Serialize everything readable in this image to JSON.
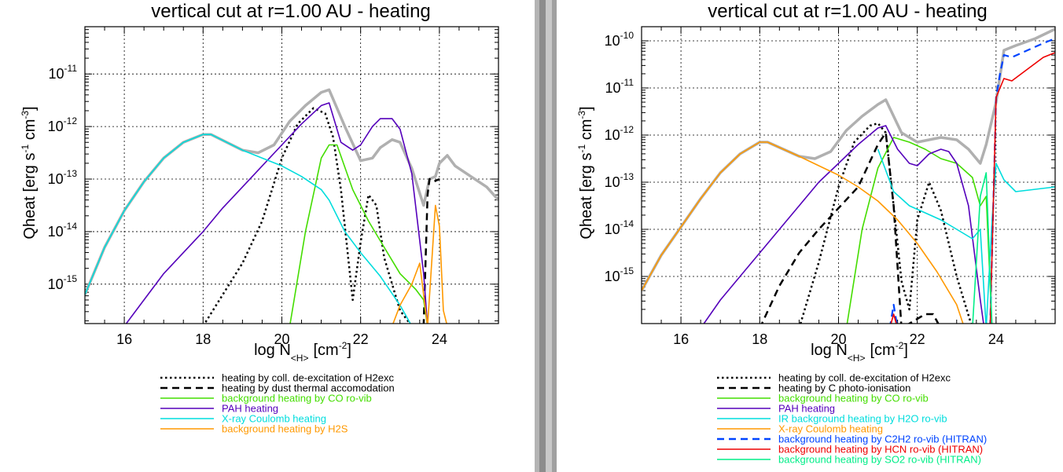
{
  "panels": [
    {
      "id": "left",
      "title": "vertical cut at r=1.00 AU - heating",
      "xlabel": "log N",
      "xlabel_sub": "<H>",
      "xlabel_unit_pre": "[cm",
      "xlabel_unit_sup": "-2",
      "xlabel_unit_post": "]",
      "ylabel_main": "Qheat [erg s",
      "ylabel_sup1": "-1",
      "ylabel_mid": " cm",
      "ylabel_sup2": "-3",
      "ylabel_end": "]",
      "xticks": [
        "16",
        "18",
        "20",
        "22",
        "24"
      ],
      "yticks": [
        {
          "base": "10",
          "exp": "-15"
        },
        {
          "base": "10",
          "exp": "-14"
        },
        {
          "base": "10",
          "exp": "-13"
        },
        {
          "base": "10",
          "exp": "-12"
        },
        {
          "base": "10",
          "exp": "-11"
        }
      ],
      "legend": [
        {
          "label": "heating by coll. de-excitation of H2exc",
          "color": "#000000",
          "dash": "dot"
        },
        {
          "label": "heating by dust thermal accomodation",
          "color": "#000000",
          "dash": "dash"
        },
        {
          "label": "background heating by CO ro-vib",
          "color": "#44dd00",
          "dash": "solid"
        },
        {
          "label": "PAH heating",
          "color": "#5500bb",
          "dash": "solid"
        },
        {
          "label": "X-ray Coulomb heating",
          "color": "#00dddd",
          "dash": "solid"
        },
        {
          "label": "background heating by H2S",
          "color": "#ff9900",
          "dash": "solid"
        }
      ]
    },
    {
      "id": "right",
      "title": "vertical cut at r=1.00 AU - heating",
      "xlabel": "log N",
      "xlabel_sub": "<H>",
      "xlabel_unit_pre": "[cm",
      "xlabel_unit_sup": "-2",
      "xlabel_unit_post": "]",
      "ylabel_main": "Qheat [erg s",
      "ylabel_sup1": "-1",
      "ylabel_mid": " cm",
      "ylabel_sup2": "-3",
      "ylabel_end": "]",
      "xticks": [
        "16",
        "18",
        "20",
        "22",
        "24"
      ],
      "yticks": [
        {
          "base": "10",
          "exp": "-15"
        },
        {
          "base": "10",
          "exp": "-14"
        },
        {
          "base": "10",
          "exp": "-13"
        },
        {
          "base": "10",
          "exp": "-12"
        },
        {
          "base": "10",
          "exp": "-11"
        },
        {
          "base": "10",
          "exp": "-10"
        }
      ],
      "legend": [
        {
          "label": "heating by coll. de-excitation of H2exc",
          "color": "#000000",
          "dash": "dot"
        },
        {
          "label": "heating by C photo-ionisation",
          "color": "#000000",
          "dash": "dash"
        },
        {
          "label": "background heating by CO ro-vib",
          "color": "#44dd00",
          "dash": "solid"
        },
        {
          "label": "PAH heating",
          "color": "#5500bb",
          "dash": "solid"
        },
        {
          "label": "IR background heating by H2O ro-vib",
          "color": "#00dddd",
          "dash": "solid"
        },
        {
          "label": "X-ray Coulomb heating",
          "color": "#ff9900",
          "dash": "solid"
        },
        {
          "label": "background heating by C2H2 ro-vib (HITRAN)",
          "color": "#0044ff",
          "dash": "dash"
        },
        {
          "label": "background heating by HCN ro-vib (HITRAN)",
          "color": "#ee0000",
          "dash": "solid"
        },
        {
          "label": "background heating by SO2 ro-vib (HITRAN)",
          "color": "#00ee88",
          "dash": "solid"
        }
      ]
    }
  ],
  "chart_data": [
    {
      "type": "line",
      "title": "vertical cut at r=1.00 AU - heating",
      "xlabel": "log N<H> [cm-2]",
      "ylabel": "Qheat [erg s-1 cm-3]",
      "xlim": [
        15.0,
        25.5
      ],
      "ylim_log10": [
        -15.75,
        -10.1
      ],
      "yscale": "log",
      "grid": true,
      "legend_position": "below",
      "series": [
        {
          "name": "total",
          "color": "#b0b0b0",
          "width": 3.5,
          "dash": "solid",
          "x": [
            15.0,
            15.5,
            16.0,
            16.5,
            17.0,
            17.5,
            18.0,
            18.2,
            18.6,
            19.0,
            19.4,
            19.8,
            20.2,
            20.6,
            21.0,
            21.2,
            21.6,
            22.0,
            22.3,
            22.5,
            22.8,
            23.0,
            23.3,
            23.6,
            23.75,
            23.9,
            24.0,
            24.2,
            24.4,
            24.8,
            25.2,
            25.5
          ],
          "y": [
            -15.2,
            -14.3,
            -13.6,
            -13.05,
            -12.6,
            -12.3,
            -12.15,
            -12.15,
            -12.3,
            -12.45,
            -12.5,
            -12.35,
            -11.9,
            -11.6,
            -11.35,
            -11.3,
            -12.0,
            -12.65,
            -12.6,
            -12.4,
            -12.25,
            -12.3,
            -12.8,
            -13.5,
            -13.0,
            -12.95,
            -12.7,
            -12.55,
            -12.75,
            -12.95,
            -13.15,
            -13.4
          ]
        },
        {
          "name": "heating by coll. de-excitation of H2exc",
          "color": "#000000",
          "width": 2.5,
          "dash": "dot",
          "x": [
            18.0,
            18.5,
            19.0,
            19.5,
            20.0,
            20.4,
            20.8,
            21.1,
            21.3,
            21.5,
            21.8,
            22.0,
            22.2,
            22.4,
            22.6,
            23.0,
            23.3
          ],
          "y": [
            -15.8,
            -15.2,
            -14.6,
            -13.8,
            -12.6,
            -11.95,
            -11.65,
            -11.75,
            -12.2,
            -13.2,
            -15.3,
            -14.2,
            -13.3,
            -13.5,
            -14.5,
            -15.5,
            -15.8
          ]
        },
        {
          "name": "heating by dust thermal accomodation",
          "color": "#000000",
          "width": 2.5,
          "dash": "dash",
          "x": [
            23.6,
            23.7,
            23.75,
            23.85,
            24.0
          ],
          "y": [
            -15.8,
            -13.3,
            -13.0,
            -13.05,
            -13.0
          ]
        },
        {
          "name": "background heating by CO ro-vib",
          "color": "#44dd00",
          "width": 1.6,
          "dash": "solid",
          "x": [
            20.2,
            20.6,
            21.0,
            21.2,
            21.4,
            21.8,
            22.2,
            22.6,
            23.0,
            23.4,
            23.6,
            23.7
          ],
          "y": [
            -15.8,
            -14.0,
            -12.6,
            -12.35,
            -12.35,
            -13.2,
            -13.8,
            -14.3,
            -14.8,
            -15.1,
            -15.3,
            -15.8
          ]
        },
        {
          "name": "PAH heating",
          "color": "#5500bb",
          "width": 1.6,
          "dash": "solid",
          "x": [
            16.0,
            16.5,
            17.0,
            17.5,
            18.0,
            18.5,
            19.0,
            19.5,
            20.0,
            20.5,
            21.0,
            21.2,
            21.5,
            21.8,
            22.0,
            22.3,
            22.5,
            22.8,
            23.0,
            23.3,
            23.6,
            23.7
          ],
          "y": [
            -15.8,
            -15.3,
            -14.8,
            -14.4,
            -14.0,
            -13.55,
            -13.15,
            -12.75,
            -12.35,
            -11.95,
            -11.6,
            -11.55,
            -12.3,
            -12.45,
            -12.35,
            -12.0,
            -11.85,
            -11.85,
            -12.05,
            -12.9,
            -14.8,
            -15.8
          ]
        },
        {
          "name": "X-ray Coulomb heating",
          "color": "#00dddd",
          "width": 1.6,
          "dash": "solid",
          "x": [
            15.0,
            15.5,
            16.0,
            16.5,
            17.0,
            17.5,
            18.0,
            18.2,
            18.6,
            19.0,
            19.5,
            20.0,
            20.5,
            21.0,
            21.2,
            21.6,
            22.0,
            22.5,
            23.0,
            23.3
          ],
          "y": [
            -15.2,
            -14.3,
            -13.6,
            -13.05,
            -12.6,
            -12.3,
            -12.15,
            -12.15,
            -12.3,
            -12.45,
            -12.6,
            -12.75,
            -12.95,
            -13.2,
            -13.4,
            -14.0,
            -14.4,
            -14.85,
            -15.4,
            -15.8
          ]
        },
        {
          "name": "background heating by H2S",
          "color": "#ff9900",
          "width": 1.6,
          "dash": "solid",
          "x": [
            22.8,
            23.0,
            23.3,
            23.5,
            23.7,
            23.9,
            24.0,
            24.1,
            24.2
          ],
          "y": [
            -15.8,
            -15.4,
            -15.0,
            -14.6,
            -15.8,
            -13.5,
            -13.9,
            -15.5,
            -15.8
          ]
        }
      ]
    },
    {
      "type": "line",
      "title": "vertical cut at r=1.00 AU - heating",
      "xlabel": "log N<H> [cm-2]",
      "ylabel": "Qheat [erg s-1 cm-3]",
      "xlim": [
        15.0,
        25.5
      ],
      "ylim_log10": [
        -16.0,
        -9.7
      ],
      "yscale": "log",
      "grid": true,
      "legend_position": "below",
      "series": [
        {
          "name": "total",
          "color": "#b0b0b0",
          "width": 3.5,
          "dash": "solid",
          "x": [
            15.0,
            15.5,
            16.0,
            16.5,
            17.0,
            17.5,
            18.0,
            18.2,
            18.6,
            19.0,
            19.4,
            19.8,
            20.2,
            20.6,
            21.0,
            21.2,
            21.6,
            22.0,
            22.3,
            22.6,
            23.0,
            23.3,
            23.6,
            23.75,
            24.0,
            24.2,
            24.5,
            25.0,
            25.5
          ],
          "y": [
            -15.3,
            -14.55,
            -13.95,
            -13.35,
            -12.8,
            -12.4,
            -12.15,
            -12.15,
            -12.3,
            -12.45,
            -12.5,
            -12.35,
            -11.9,
            -11.6,
            -11.35,
            -11.25,
            -11.95,
            -12.15,
            -12.1,
            -12.05,
            -12.1,
            -12.3,
            -12.6,
            -12.2,
            -11.3,
            -10.2,
            -10.1,
            -9.95,
            -9.75
          ]
        },
        {
          "name": "heating by coll. de-excitation of H2exc",
          "color": "#000000",
          "width": 2.5,
          "dash": "dot",
          "x": [
            19.0,
            19.5,
            20.0,
            20.4,
            20.8,
            21.0,
            21.2,
            21.4,
            21.6,
            21.8,
            22.0,
            22.3,
            22.6,
            23.0,
            23.4
          ],
          "y": [
            -16.1,
            -14.7,
            -13.1,
            -12.15,
            -11.8,
            -11.75,
            -11.95,
            -13.5,
            -15.1,
            -15.7,
            -13.8,
            -13.0,
            -13.6,
            -15.0,
            -16.1
          ]
        },
        {
          "name": "heating by C photo-ionisation",
          "color": "#000000",
          "width": 2.5,
          "dash": "dash",
          "x": [
            18.0,
            18.5,
            19.0,
            19.5,
            20.0,
            20.5,
            21.0,
            21.2,
            21.4,
            21.6,
            22.0,
            22.2,
            22.4,
            22.6
          ],
          "y": [
            -16.1,
            -15.2,
            -14.5,
            -14.0,
            -13.55,
            -13.1,
            -12.2,
            -11.95,
            -13.5,
            -16.1,
            -15.9,
            -15.8,
            -15.8,
            -16.1
          ]
        },
        {
          "name": "background heating by CO ro-vib",
          "color": "#44dd00",
          "width": 1.6,
          "dash": "solid",
          "x": [
            20.2,
            20.6,
            21.0,
            21.4,
            21.8,
            22.2,
            22.6,
            23.0,
            23.4,
            23.6,
            23.75,
            23.9
          ],
          "y": [
            -16.1,
            -14.0,
            -12.7,
            -12.05,
            -12.15,
            -12.3,
            -12.5,
            -12.6,
            -12.9,
            -13.5,
            -13.3,
            -16.1
          ]
        },
        {
          "name": "PAH heating",
          "color": "#5500bb",
          "width": 1.6,
          "dash": "solid",
          "x": [
            16.5,
            17.0,
            17.5,
            18.0,
            18.5,
            19.0,
            19.5,
            20.0,
            20.5,
            21.0,
            21.2,
            21.5,
            21.8,
            22.0,
            22.3,
            22.6,
            22.8,
            23.0,
            23.3,
            23.6,
            23.7
          ],
          "y": [
            -16.1,
            -15.5,
            -15.0,
            -14.5,
            -14.0,
            -13.5,
            -13.0,
            -12.6,
            -12.2,
            -11.85,
            -11.8,
            -12.3,
            -12.6,
            -12.65,
            -12.4,
            -12.3,
            -12.35,
            -12.6,
            -13.5,
            -15.5,
            -16.1
          ]
        },
        {
          "name": "IR background heating by H2O ro-vib",
          "color": "#00dddd",
          "width": 1.6,
          "dash": "solid",
          "x": [
            21.0,
            21.4,
            21.8,
            22.2,
            22.6,
            23.0,
            23.4,
            23.6,
            23.75,
            23.9,
            24.0,
            24.2,
            24.5,
            25.0,
            25.5
          ],
          "y": [
            -12.3,
            -13.2,
            -13.5,
            -13.65,
            -13.8,
            -14.0,
            -14.2,
            -14.0,
            -16.1,
            -13.8,
            -12.6,
            -12.95,
            -13.2,
            -13.15,
            -13.1
          ]
        },
        {
          "name": "X-ray Coulomb heating",
          "color": "#ff9900",
          "width": 1.6,
          "dash": "solid",
          "x": [
            15.0,
            15.5,
            16.0,
            16.5,
            17.0,
            17.5,
            18.0,
            18.2,
            18.6,
            19.0,
            19.5,
            20.0,
            20.5,
            21.0,
            21.5,
            22.0,
            22.5,
            23.0,
            23.2
          ],
          "y": [
            -15.3,
            -14.55,
            -13.95,
            -13.35,
            -12.8,
            -12.4,
            -12.15,
            -12.15,
            -12.3,
            -12.45,
            -12.65,
            -12.85,
            -13.1,
            -13.4,
            -13.8,
            -14.3,
            -14.9,
            -15.6,
            -16.1
          ]
        },
        {
          "name": "background heating by C2H2 ro-vib (HITRAN)",
          "color": "#0044ff",
          "width": 2.2,
          "dash": "dash",
          "x": [
            21.3,
            21.4,
            21.5,
            23.85,
            24.0,
            24.1,
            24.2,
            24.4,
            24.8,
            25.2,
            25.5
          ],
          "y": [
            -16.1,
            -15.6,
            -16.1,
            -16.1,
            -11.2,
            -10.7,
            -10.3,
            -10.35,
            -10.2,
            -10.05,
            -9.95
          ]
        },
        {
          "name": "background heating by HCN ro-vib (HITRAN)",
          "color": "#ee0000",
          "width": 1.6,
          "dash": "solid",
          "x": [
            21.3,
            21.4,
            21.5,
            23.85,
            24.0,
            24.1,
            24.2,
            24.4,
            24.8,
            25.2,
            25.5
          ],
          "y": [
            -16.1,
            -15.8,
            -16.1,
            -16.1,
            -11.2,
            -11.0,
            -10.8,
            -10.85,
            -10.6,
            -10.35,
            -10.25
          ]
        },
        {
          "name": "background heating by SO2 ro-vib (HITRAN)",
          "color": "#00ee88",
          "width": 1.6,
          "dash": "solid",
          "x": [
            23.4,
            23.6,
            23.75,
            23.9
          ],
          "y": [
            -16.1,
            -13.3,
            -12.8,
            -16.1
          ]
        }
      ]
    }
  ]
}
